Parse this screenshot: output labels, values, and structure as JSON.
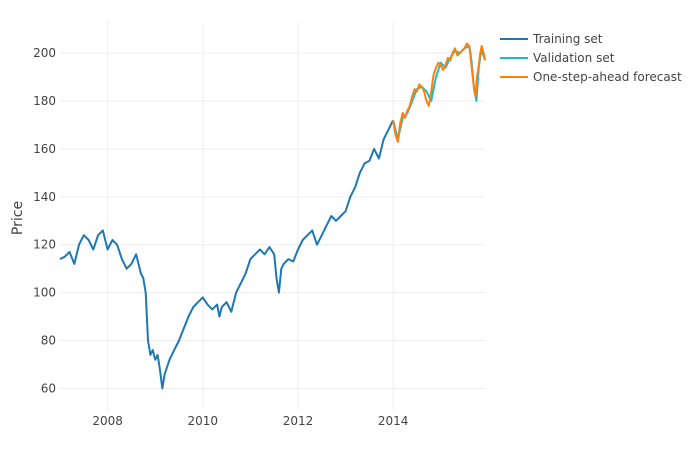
{
  "chart_data": {
    "type": "line",
    "title": "",
    "xlabel": "",
    "ylabel": "Price",
    "xlim": [
      2007.0,
      2015.93
    ],
    "ylim": [
      51,
      213
    ],
    "xticks": [
      2008,
      2010,
      2012,
      2014
    ],
    "xtick_labels": [
      "2008",
      "2010",
      "2012",
      "2014"
    ],
    "yticks": [
      60,
      80,
      100,
      120,
      140,
      160,
      180,
      200
    ],
    "ytick_labels": [
      "60",
      "80",
      "100",
      "120",
      "140",
      "160",
      "180",
      "200"
    ],
    "grid": true,
    "legend": "top-right",
    "series": [
      {
        "name": "Training set",
        "color": "#1f77b4",
        "x": [
          2007.0,
          2007.1,
          2007.2,
          2007.3,
          2007.4,
          2007.5,
          2007.6,
          2007.7,
          2007.8,
          2007.9,
          2008.0,
          2008.1,
          2008.2,
          2008.3,
          2008.4,
          2008.5,
          2008.6,
          2008.7,
          2008.75,
          2008.8,
          2008.85,
          2008.9,
          2008.95,
          2009.0,
          2009.05,
          2009.1,
          2009.15,
          2009.2,
          2009.3,
          2009.4,
          2009.5,
          2009.6,
          2009.7,
          2009.8,
          2009.9,
          2010.0,
          2010.1,
          2010.2,
          2010.3,
          2010.35,
          2010.4,
          2010.5,
          2010.6,
          2010.7,
          2010.8,
          2010.9,
          2011.0,
          2011.1,
          2011.2,
          2011.3,
          2011.4,
          2011.5,
          2011.55,
          2011.6,
          2011.65,
          2011.7,
          2011.8,
          2011.9,
          2012.0,
          2012.1,
          2012.2,
          2012.3,
          2012.4,
          2012.5,
          2012.6,
          2012.7,
          2012.8,
          2012.9,
          2013.0,
          2013.1,
          2013.2,
          2013.3,
          2013.4,
          2013.5,
          2013.6,
          2013.7,
          2013.8,
          2013.9,
          2014.0
        ],
        "y": [
          114,
          115,
          117,
          112,
          120,
          124,
          122,
          118,
          124,
          126,
          118,
          122,
          120,
          114,
          110,
          112,
          116,
          108,
          106,
          100,
          80,
          74,
          76,
          72,
          74,
          68,
          60,
          66,
          72,
          76,
          80,
          85,
          90,
          94,
          96,
          98,
          95,
          93,
          95,
          90,
          94,
          96,
          92,
          100,
          104,
          108,
          114,
          116,
          118,
          116,
          119,
          116,
          106,
          100,
          110,
          112,
          114,
          113,
          118,
          122,
          124,
          126,
          120,
          124,
          128,
          132,
          130,
          132,
          134,
          140,
          144,
          150,
          154,
          155,
          160,
          156,
          164,
          168,
          172
        ]
      },
      {
        "name": "Validation set",
        "color": "#17becf",
        "x": [
          2014.0,
          2014.1,
          2014.2,
          2014.3,
          2014.4,
          2014.5,
          2014.6,
          2014.7,
          2014.8,
          2014.9,
          2015.0,
          2015.1,
          2015.2,
          2015.3,
          2015.4,
          2015.5,
          2015.6,
          2015.65,
          2015.7,
          2015.75,
          2015.8,
          2015.85,
          2015.9,
          2015.93
        ],
        "y": [
          172,
          164,
          173,
          175,
          180,
          185,
          186,
          184,
          180,
          190,
          196,
          194,
          198,
          201,
          200,
          202,
          203,
          196,
          185,
          180,
          194,
          201,
          199,
          197
        ]
      },
      {
        "name": "One-step-ahead forecast",
        "color": "#ff7f0e",
        "x": [
          2014.0,
          2014.05,
          2014.1,
          2014.15,
          2014.2,
          2014.25,
          2014.3,
          2014.35,
          2014.4,
          2014.45,
          2014.5,
          2014.55,
          2014.6,
          2014.65,
          2014.7,
          2014.75,
          2014.8,
          2014.85,
          2014.9,
          2014.95,
          2015.0,
          2015.05,
          2015.1,
          2015.15,
          2015.2,
          2015.25,
          2015.3,
          2015.35,
          2015.4,
          2015.45,
          2015.5,
          2015.55,
          2015.6,
          2015.63,
          2015.66,
          2015.7,
          2015.73,
          2015.76,
          2015.8,
          2015.83,
          2015.86,
          2015.9,
          2015.93
        ],
        "y": [
          172,
          166,
          163,
          171,
          175,
          173,
          176,
          178,
          182,
          185,
          184,
          187,
          186,
          184,
          180,
          178,
          184,
          191,
          194,
          196,
          195,
          193,
          195,
          198,
          197,
          200,
          202,
          199,
          200,
          201,
          202,
          204,
          203,
          198,
          192,
          185,
          182,
          190,
          195,
          200,
          203,
          200,
          197
        ]
      }
    ]
  }
}
